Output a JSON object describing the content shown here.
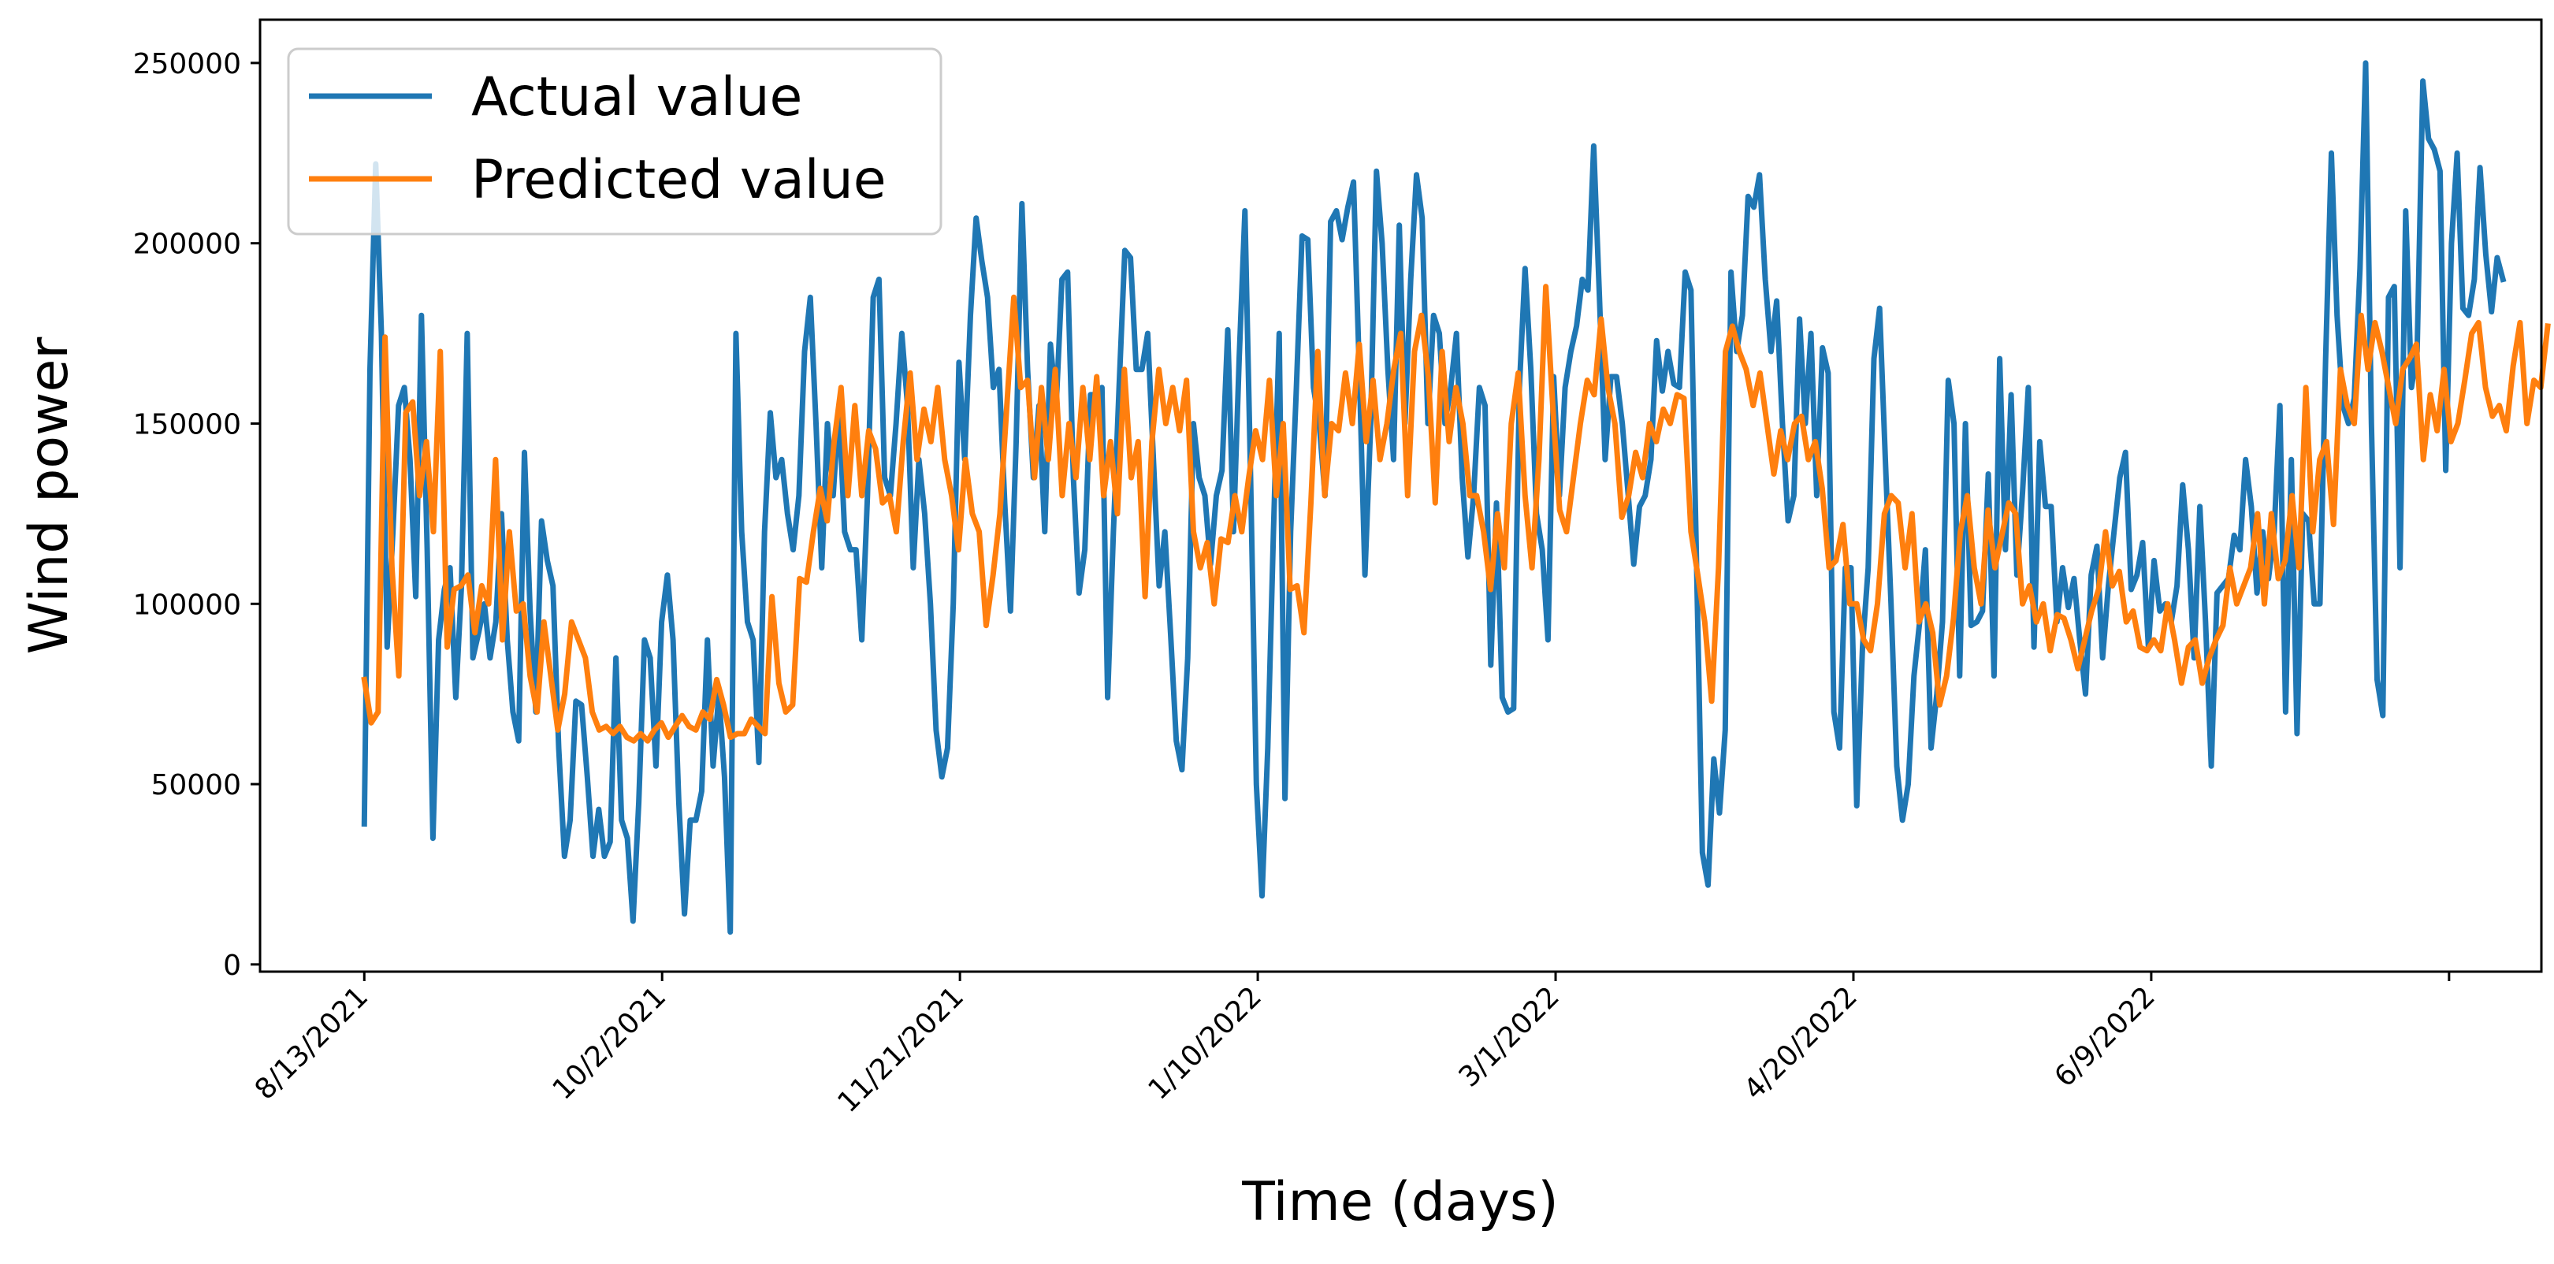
{
  "chart_data": {
    "type": "line",
    "xlabel": "Time (days)",
    "ylabel": "Wind power",
    "x_tick_labels": [
      "8/13/2021",
      "10/2/2021",
      "11/21/2021",
      "1/10/2022",
      "3/1/2022",
      "4/20/2022",
      "6/9/2022"
    ],
    "y_ticks": [
      0,
      50000,
      100000,
      150000,
      200000,
      250000
    ],
    "y_tick_labels": [
      "0",
      "50000",
      "100000",
      "150000",
      "200000",
      "250000"
    ],
    "ylim": [
      -2000,
      262000
    ],
    "xlim_days": [
      -17.5,
      365.5
    ],
    "x_tick_days": [
      0,
      50,
      100,
      150,
      200,
      250,
      300
    ],
    "legend": {
      "position": "top-left",
      "entries": [
        "Actual value",
        "Predicted value"
      ]
    },
    "series": [
      {
        "name": "Actual value",
        "color": "#1f77b4",
        "values": [
          39000,
          165000,
          222000,
          175000,
          88000,
          120000,
          155000,
          160000,
          140000,
          102000,
          180000,
          115000,
          35000,
          90000,
          104000,
          110000,
          74000,
          105000,
          175000,
          85000,
          92000,
          100000,
          85000,
          95000,
          125000,
          90000,
          70000,
          62000,
          142000,
          98000,
          70000,
          123000,
          112000,
          105000,
          60000,
          30000,
          40000,
          73000,
          72000,
          52000,
          30000,
          43000,
          30000,
          34000,
          85000,
          40000,
          35000,
          12000,
          45000,
          90000,
          85000,
          55000,
          95000,
          108000,
          90000,
          45000,
          14000,
          40000,
          40000,
          48000,
          90000,
          55000,
          75000,
          52000,
          9000,
          175000,
          120000,
          95000,
          90000,
          56000,
          120000,
          153000,
          135000,
          140000,
          125000,
          115000,
          130000,
          170000,
          185000,
          150000,
          110000,
          150000,
          130000,
          155000,
          120000,
          115000,
          115000,
          90000,
          130000,
          185000,
          190000,
          135000,
          130000,
          150000,
          175000,
          155000,
          110000,
          140000,
          125000,
          100000,
          65000,
          52000,
          60000,
          100000,
          167000,
          140000,
          180000,
          207000,
          195000,
          185000,
          160000,
          165000,
          128000,
          98000,
          145000,
          211000,
          165000,
          135000,
          155000,
          120000,
          172000,
          155000,
          190000,
          192000,
          135000,
          103000,
          115000,
          158000,
          158000,
          160000,
          74000,
          120000,
          160000,
          198000,
          196000,
          165000,
          165000,
          175000,
          140000,
          105000,
          120000,
          92000,
          62000,
          54000,
          85000,
          150000,
          135000,
          130000,
          111000,
          130000,
          137000,
          176000,
          120000,
          168000,
          209000,
          135000,
          50000,
          19000,
          60000,
          120000,
          175000,
          46000,
          120000,
          160000,
          202000,
          201000,
          160000,
          150000,
          130000,
          206000,
          209000,
          201000,
          210000,
          217000,
          165000,
          108000,
          150000,
          220000,
          200000,
          165000,
          140000,
          205000,
          150000,
          190000,
          219000,
          207000,
          150000,
          180000,
          175000,
          150000,
          160000,
          175000,
          135000,
          113000,
          130000,
          160000,
          155000,
          83000,
          128000,
          74000,
          70000,
          71000,
          160000,
          193000,
          165000,
          125000,
          115000,
          90000,
          163000,
          130000,
          160000,
          170000,
          177000,
          190000,
          187000,
          227000,
          185000,
          140000,
          163000,
          163000,
          150000,
          131000,
          111000,
          127000,
          130000,
          140000,
          173000,
          159000,
          170000,
          161000,
          160000,
          192000,
          187000,
          110000,
          31000,
          22000,
          57000,
          42000,
          65000,
          192000,
          170000,
          180000,
          213000,
          210000,
          219000,
          190000,
          170000,
          184000,
          150000,
          123000,
          130000,
          179000,
          150000,
          175000,
          130000,
          171000,
          164000,
          70000,
          60000,
          110000,
          110000,
          44000,
          88000,
          110000,
          168000,
          182000,
          140000,
          100000,
          55000,
          40000,
          50000,
          80000,
          95000,
          115000,
          60000,
          75000,
          95000,
          162000,
          150000,
          80000,
          150000,
          94000,
          95000,
          98000,
          136000,
          80000,
          168000,
          115000,
          158000,
          108000,
          131000,
          160000,
          88000,
          145000,
          127000,
          127000,
          95000,
          110000,
          99000,
          107000,
          90000,
          75000,
          108000,
          116000,
          85000,
          105000,
          120000,
          135000,
          142000,
          104000,
          108000,
          117000,
          88000,
          112000,
          98000,
          100000,
          95000,
          105000,
          133000,
          115000,
          85000,
          127000,
          95000,
          55000,
          103000,
          105000,
          107000,
          119000,
          115000,
          140000,
          127000,
          103000,
          120000,
          107000,
          120000,
          155000,
          70000,
          140000,
          64000,
          125000,
          123000,
          100000,
          100000,
          168000,
          225000,
          180000,
          155000,
          150000,
          157000,
          193000,
          250000,
          150000,
          79000,
          69000,
          185000,
          188000,
          110000,
          209000,
          160000,
          170000,
          245000,
          229000,
          226000,
          220000,
          137000,
          200000,
          225000,
          182000,
          180000,
          190000,
          221000,
          197000,
          181000,
          196000,
          190000
        ],
        "step_days": 0.96
      },
      {
        "name": "Predicted value",
        "color": "#ff7f0e",
        "values": [
          79000,
          67000,
          70000,
          174000,
          110000,
          80000,
          153000,
          156000,
          130000,
          145000,
          120000,
          170000,
          88000,
          104000,
          105000,
          108000,
          92000,
          105000,
          100000,
          140000,
          90000,
          120000,
          98000,
          100000,
          80000,
          70000,
          95000,
          80000,
          65000,
          75000,
          95000,
          90000,
          85000,
          70000,
          65000,
          66000,
          64000,
          66000,
          63000,
          62000,
          64000,
          62000,
          65000,
          67000,
          63000,
          66000,
          69000,
          66000,
          65000,
          70000,
          68000,
          79000,
          72000,
          63000,
          64000,
          64000,
          68000,
          66000,
          64000,
          102000,
          78000,
          70000,
          72000,
          107000,
          106000,
          120000,
          132000,
          123000,
          145000,
          160000,
          130000,
          155000,
          130000,
          148000,
          143000,
          128000,
          130000,
          120000,
          145000,
          164000,
          140000,
          154000,
          145000,
          160000,
          140000,
          130000,
          115000,
          140000,
          125000,
          120000,
          94000,
          108000,
          125000,
          155000,
          185000,
          160000,
          162000,
          135000,
          160000,
          140000,
          165000,
          130000,
          150000,
          135000,
          160000,
          140000,
          163000,
          130000,
          145000,
          125000,
          165000,
          135000,
          145000,
          102000,
          145000,
          165000,
          150000,
          160000,
          148000,
          162000,
          120000,
          110000,
          117000,
          100000,
          118000,
          117000,
          130000,
          120000,
          135000,
          148000,
          140000,
          162000,
          130000,
          150000,
          104000,
          105000,
          92000,
          128000,
          170000,
          130000,
          150000,
          148000,
          164000,
          150000,
          172000,
          145000,
          162000,
          140000,
          150000,
          165000,
          175000,
          130000,
          170000,
          180000,
          163000,
          128000,
          170000,
          145000,
          160000,
          150000,
          130000,
          130000,
          120000,
          104000,
          125000,
          110000,
          150000,
          164000,
          130000,
          110000,
          140000,
          188000,
          155000,
          126000,
          120000,
          135000,
          150000,
          162000,
          158000,
          179000,
          160000,
          150000,
          124000,
          130000,
          142000,
          135000,
          150000,
          145000,
          154000,
          150000,
          158000,
          157000,
          120000,
          108000,
          95000,
          73000,
          110000,
          170000,
          177000,
          170000,
          165000,
          155000,
          164000,
          150000,
          136000,
          148000,
          140000,
          150000,
          152000,
          140000,
          145000,
          132000,
          110000,
          112000,
          122000,
          100000,
          100000,
          90000,
          87000,
          100000,
          125000,
          130000,
          128000,
          110000,
          125000,
          95000,
          100000,
          92000,
          72000,
          80000,
          96000,
          120000,
          130000,
          110000,
          100000,
          126000,
          110000,
          119000,
          128000,
          125000,
          100000,
          105000,
          95000,
          100000,
          87000,
          97000,
          96000,
          90000,
          82000,
          90000,
          98000,
          104000,
          120000,
          105000,
          109000,
          95000,
          98000,
          88000,
          87000,
          90000,
          87000,
          100000,
          90000,
          78000,
          88000,
          90000,
          78000,
          85000,
          90000,
          94000,
          110000,
          100000,
          105000,
          110000,
          125000,
          100000,
          125000,
          107000,
          112000,
          130000,
          110000,
          160000,
          120000,
          140000,
          145000,
          122000,
          165000,
          155000,
          150000,
          180000,
          165000,
          178000,
          170000,
          160000,
          150000,
          165000,
          168000,
          172000,
          140000,
          158000,
          148000,
          165000,
          145000,
          150000,
          162000,
          175000,
          178000,
          160000,
          152000,
          155000,
          148000,
          166000,
          178000,
          150000,
          162000,
          160000,
          177000
        ],
        "step_days": 1.16
      }
    ]
  }
}
